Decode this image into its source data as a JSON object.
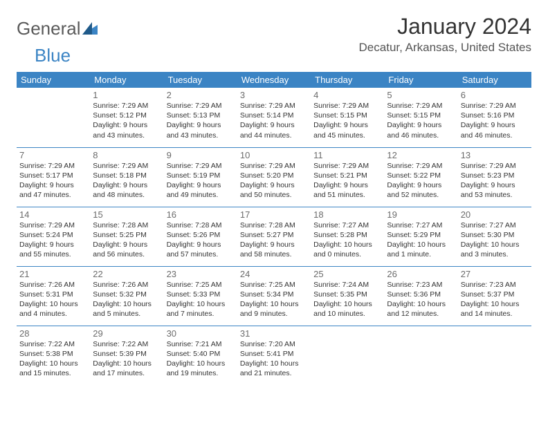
{
  "brand": {
    "part1": "General",
    "part2": "Blue"
  },
  "title": "January 2024",
  "location": "Decatur, Arkansas, United States",
  "colors": {
    "accent": "#3b84c4",
    "header_text": "#ffffff",
    "text": "#333333",
    "muted": "#6b6b6b",
    "logo_gray": "#5a5a5a"
  },
  "weekdays": [
    "Sunday",
    "Monday",
    "Tuesday",
    "Wednesday",
    "Thursday",
    "Friday",
    "Saturday"
  ],
  "start_weekday": 1,
  "days": [
    {
      "n": 1,
      "sunrise": "7:29 AM",
      "sunset": "5:12 PM",
      "daylight": "9 hours and 43 minutes."
    },
    {
      "n": 2,
      "sunrise": "7:29 AM",
      "sunset": "5:13 PM",
      "daylight": "9 hours and 43 minutes."
    },
    {
      "n": 3,
      "sunrise": "7:29 AM",
      "sunset": "5:14 PM",
      "daylight": "9 hours and 44 minutes."
    },
    {
      "n": 4,
      "sunrise": "7:29 AM",
      "sunset": "5:15 PM",
      "daylight": "9 hours and 45 minutes."
    },
    {
      "n": 5,
      "sunrise": "7:29 AM",
      "sunset": "5:15 PM",
      "daylight": "9 hours and 46 minutes."
    },
    {
      "n": 6,
      "sunrise": "7:29 AM",
      "sunset": "5:16 PM",
      "daylight": "9 hours and 46 minutes."
    },
    {
      "n": 7,
      "sunrise": "7:29 AM",
      "sunset": "5:17 PM",
      "daylight": "9 hours and 47 minutes."
    },
    {
      "n": 8,
      "sunrise": "7:29 AM",
      "sunset": "5:18 PM",
      "daylight": "9 hours and 48 minutes."
    },
    {
      "n": 9,
      "sunrise": "7:29 AM",
      "sunset": "5:19 PM",
      "daylight": "9 hours and 49 minutes."
    },
    {
      "n": 10,
      "sunrise": "7:29 AM",
      "sunset": "5:20 PM",
      "daylight": "9 hours and 50 minutes."
    },
    {
      "n": 11,
      "sunrise": "7:29 AM",
      "sunset": "5:21 PM",
      "daylight": "9 hours and 51 minutes."
    },
    {
      "n": 12,
      "sunrise": "7:29 AM",
      "sunset": "5:22 PM",
      "daylight": "9 hours and 52 minutes."
    },
    {
      "n": 13,
      "sunrise": "7:29 AM",
      "sunset": "5:23 PM",
      "daylight": "9 hours and 53 minutes."
    },
    {
      "n": 14,
      "sunrise": "7:29 AM",
      "sunset": "5:24 PM",
      "daylight": "9 hours and 55 minutes."
    },
    {
      "n": 15,
      "sunrise": "7:28 AM",
      "sunset": "5:25 PM",
      "daylight": "9 hours and 56 minutes."
    },
    {
      "n": 16,
      "sunrise": "7:28 AM",
      "sunset": "5:26 PM",
      "daylight": "9 hours and 57 minutes."
    },
    {
      "n": 17,
      "sunrise": "7:28 AM",
      "sunset": "5:27 PM",
      "daylight": "9 hours and 58 minutes."
    },
    {
      "n": 18,
      "sunrise": "7:27 AM",
      "sunset": "5:28 PM",
      "daylight": "10 hours and 0 minutes."
    },
    {
      "n": 19,
      "sunrise": "7:27 AM",
      "sunset": "5:29 PM",
      "daylight": "10 hours and 1 minute."
    },
    {
      "n": 20,
      "sunrise": "7:27 AM",
      "sunset": "5:30 PM",
      "daylight": "10 hours and 3 minutes."
    },
    {
      "n": 21,
      "sunrise": "7:26 AM",
      "sunset": "5:31 PM",
      "daylight": "10 hours and 4 minutes."
    },
    {
      "n": 22,
      "sunrise": "7:26 AM",
      "sunset": "5:32 PM",
      "daylight": "10 hours and 5 minutes."
    },
    {
      "n": 23,
      "sunrise": "7:25 AM",
      "sunset": "5:33 PM",
      "daylight": "10 hours and 7 minutes."
    },
    {
      "n": 24,
      "sunrise": "7:25 AM",
      "sunset": "5:34 PM",
      "daylight": "10 hours and 9 minutes."
    },
    {
      "n": 25,
      "sunrise": "7:24 AM",
      "sunset": "5:35 PM",
      "daylight": "10 hours and 10 minutes."
    },
    {
      "n": 26,
      "sunrise": "7:23 AM",
      "sunset": "5:36 PM",
      "daylight": "10 hours and 12 minutes."
    },
    {
      "n": 27,
      "sunrise": "7:23 AM",
      "sunset": "5:37 PM",
      "daylight": "10 hours and 14 minutes."
    },
    {
      "n": 28,
      "sunrise": "7:22 AM",
      "sunset": "5:38 PM",
      "daylight": "10 hours and 15 minutes."
    },
    {
      "n": 29,
      "sunrise": "7:22 AM",
      "sunset": "5:39 PM",
      "daylight": "10 hours and 17 minutes."
    },
    {
      "n": 30,
      "sunrise": "7:21 AM",
      "sunset": "5:40 PM",
      "daylight": "10 hours and 19 minutes."
    },
    {
      "n": 31,
      "sunrise": "7:20 AM",
      "sunset": "5:41 PM",
      "daylight": "10 hours and 21 minutes."
    }
  ],
  "labels": {
    "sunrise": "Sunrise:",
    "sunset": "Sunset:",
    "daylight": "Daylight:"
  }
}
